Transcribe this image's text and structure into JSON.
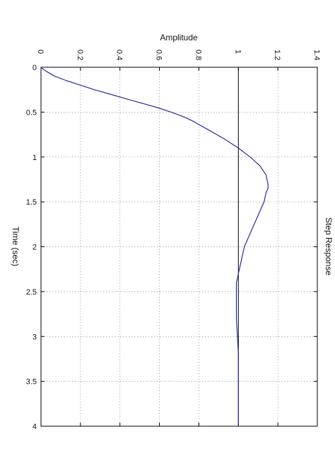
{
  "chart_data": {
    "type": "line",
    "title": "Step Response",
    "xlabel": "Time (sec)",
    "ylabel": "Amplitude",
    "xlim": [
      0,
      4
    ],
    "ylim": [
      0,
      1.4
    ],
    "xticks": [
      0,
      0.5,
      1,
      1.5,
      2,
      2.5,
      3,
      3.5,
      4
    ],
    "yticks": [
      0,
      0.2,
      0.4,
      0.6,
      0.8,
      1,
      1.2,
      1.4
    ],
    "xtick_labels": [
      "0",
      "0.5",
      "1",
      "1.5",
      "2",
      "2.5",
      "3",
      "3.5",
      "4"
    ],
    "ytick_labels": [
      "0",
      "0.2",
      "0.4",
      "0.6",
      "0.8",
      "1",
      "1.2",
      "1.4"
    ],
    "grid": true,
    "orientation": "rotated 90° clockwise",
    "reference_line": {
      "y": 1
    },
    "series": [
      {
        "color": "#2b2ba0",
        "x": [
          0,
          0.02,
          0.05,
          0.1,
          0.15,
          0.2,
          0.25,
          0.3,
          0.35,
          0.4,
          0.45,
          0.5,
          0.55,
          0.6,
          0.7,
          0.8,
          0.9,
          1.0,
          1.1,
          1.2,
          1.3,
          1.35,
          1.4,
          1.5,
          1.6,
          1.7,
          1.8,
          1.9,
          2.0,
          2.1,
          2.2,
          2.3,
          2.4,
          2.5,
          2.6,
          2.8,
          3.0,
          3.2,
          3.4,
          3.6,
          3.8,
          4.0
        ],
        "y": [
          0,
          0.01,
          0.03,
          0.07,
          0.13,
          0.2,
          0.27,
          0.35,
          0.43,
          0.51,
          0.59,
          0.66,
          0.72,
          0.77,
          0.85,
          0.93,
          1.0,
          1.06,
          1.11,
          1.14,
          1.15,
          1.15,
          1.14,
          1.13,
          1.11,
          1.09,
          1.07,
          1.05,
          1.03,
          1.02,
          1.01,
          1.0,
          0.99,
          0.99,
          0.99,
          0.99,
          0.995,
          1.0,
          1.0,
          1.0,
          1.0,
          1.0
        ]
      }
    ]
  }
}
